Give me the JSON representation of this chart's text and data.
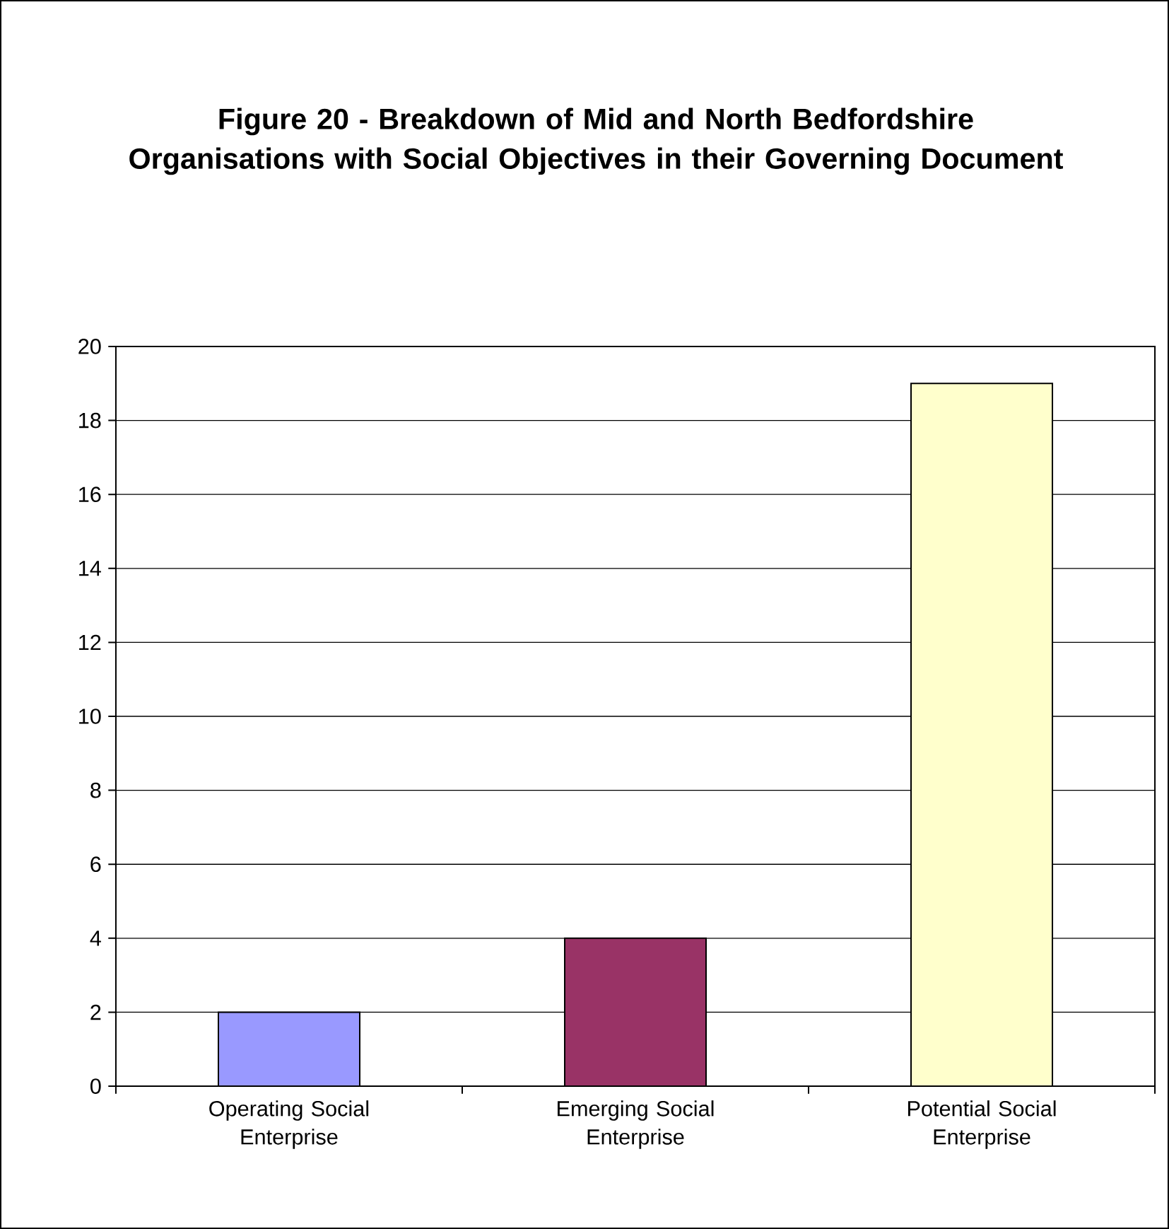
{
  "chart_data": {
    "type": "bar",
    "title": "Figure 20 - Breakdown of Mid and North Bedfordshire Organisations with Social Objectives in their Governing Document",
    "categories": [
      "Operating Social Enterprise",
      "Emerging Social Enterprise",
      "Potential Social Enterprise"
    ],
    "values": [
      2,
      4,
      19
    ],
    "colors": [
      "#9999ff",
      "#993366",
      "#ffffcc"
    ],
    "ylim": [
      0,
      20
    ],
    "yticks": [
      0,
      2,
      4,
      6,
      8,
      10,
      12,
      14,
      16,
      18,
      20
    ],
    "grid": "y"
  }
}
